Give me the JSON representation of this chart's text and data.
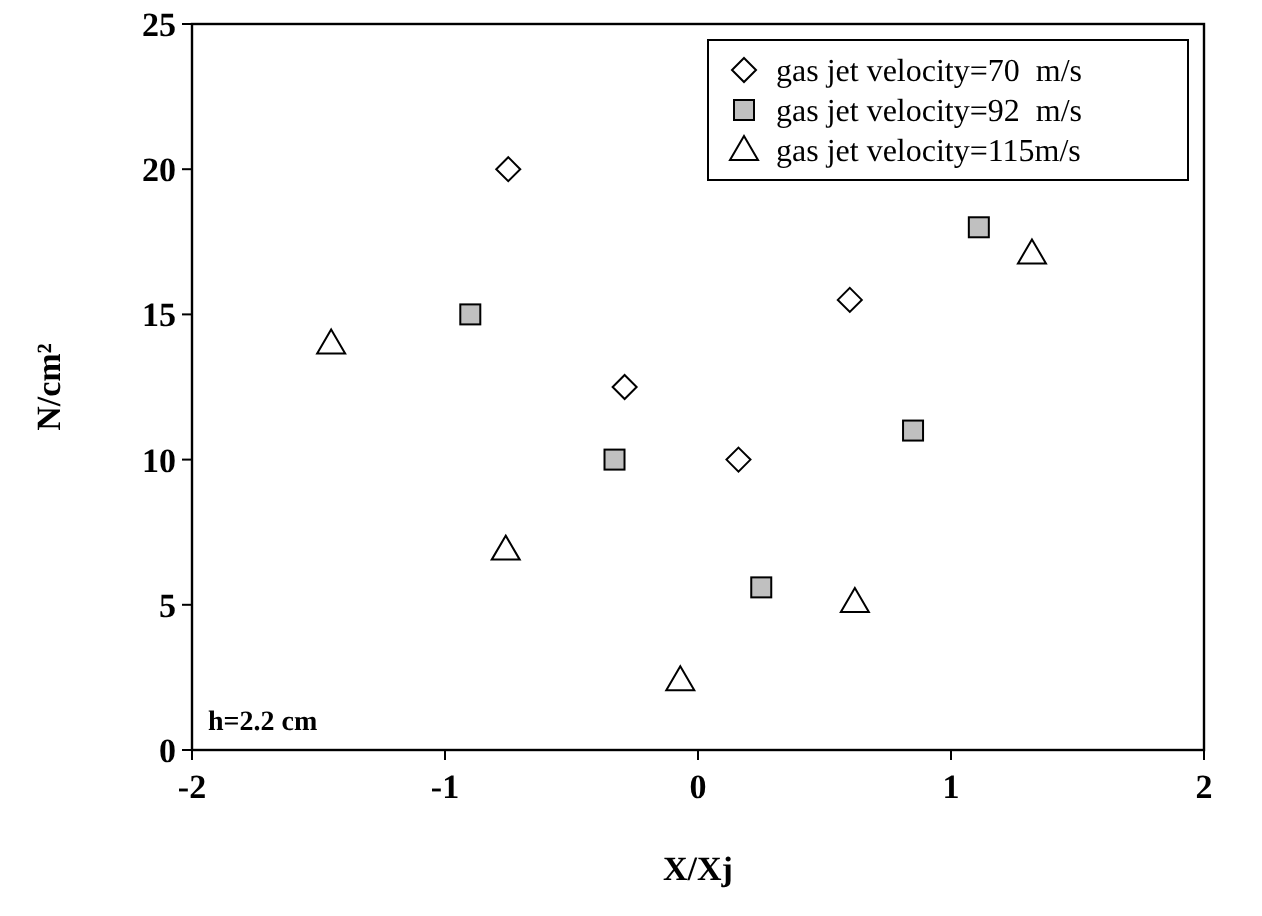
{
  "chart_data": {
    "type": "scatter",
    "xlabel": "X/Xj",
    "ylabel": "N/cm²",
    "xlim": [
      -2,
      2
    ],
    "ylim": [
      0,
      25
    ],
    "xticks": [
      -2,
      -1,
      0,
      1,
      2
    ],
    "yticks": [
      0,
      5,
      10,
      15,
      20,
      25
    ],
    "grid": false,
    "legend": "top right",
    "annotations": [
      "h=2.2 cm"
    ],
    "series": [
      {
        "name": "gas jet velocity=70  m/s",
        "color": "#ffffff",
        "marker": "diamond",
        "x": [
          -0.75,
          -0.29,
          0.16,
          0.6
        ],
        "values": [
          20,
          12.5,
          10,
          15.5
        ]
      },
      {
        "name": "gas jet velocity=92  m/s",
        "color": "#c0c0c0",
        "marker": "square",
        "x": [
          -0.9,
          -0.33,
          0.25,
          0.85,
          1.11
        ],
        "values": [
          15,
          10,
          5.6,
          11,
          18
        ]
      },
      {
        "name": "gas jet velocity=115m/s",
        "color": "#ffffff",
        "marker": "triangle",
        "x": [
          -1.45,
          -0.76,
          -0.07,
          0.62,
          1.32
        ],
        "values": [
          14,
          6.9,
          2.4,
          5.1,
          17.1
        ]
      }
    ]
  }
}
